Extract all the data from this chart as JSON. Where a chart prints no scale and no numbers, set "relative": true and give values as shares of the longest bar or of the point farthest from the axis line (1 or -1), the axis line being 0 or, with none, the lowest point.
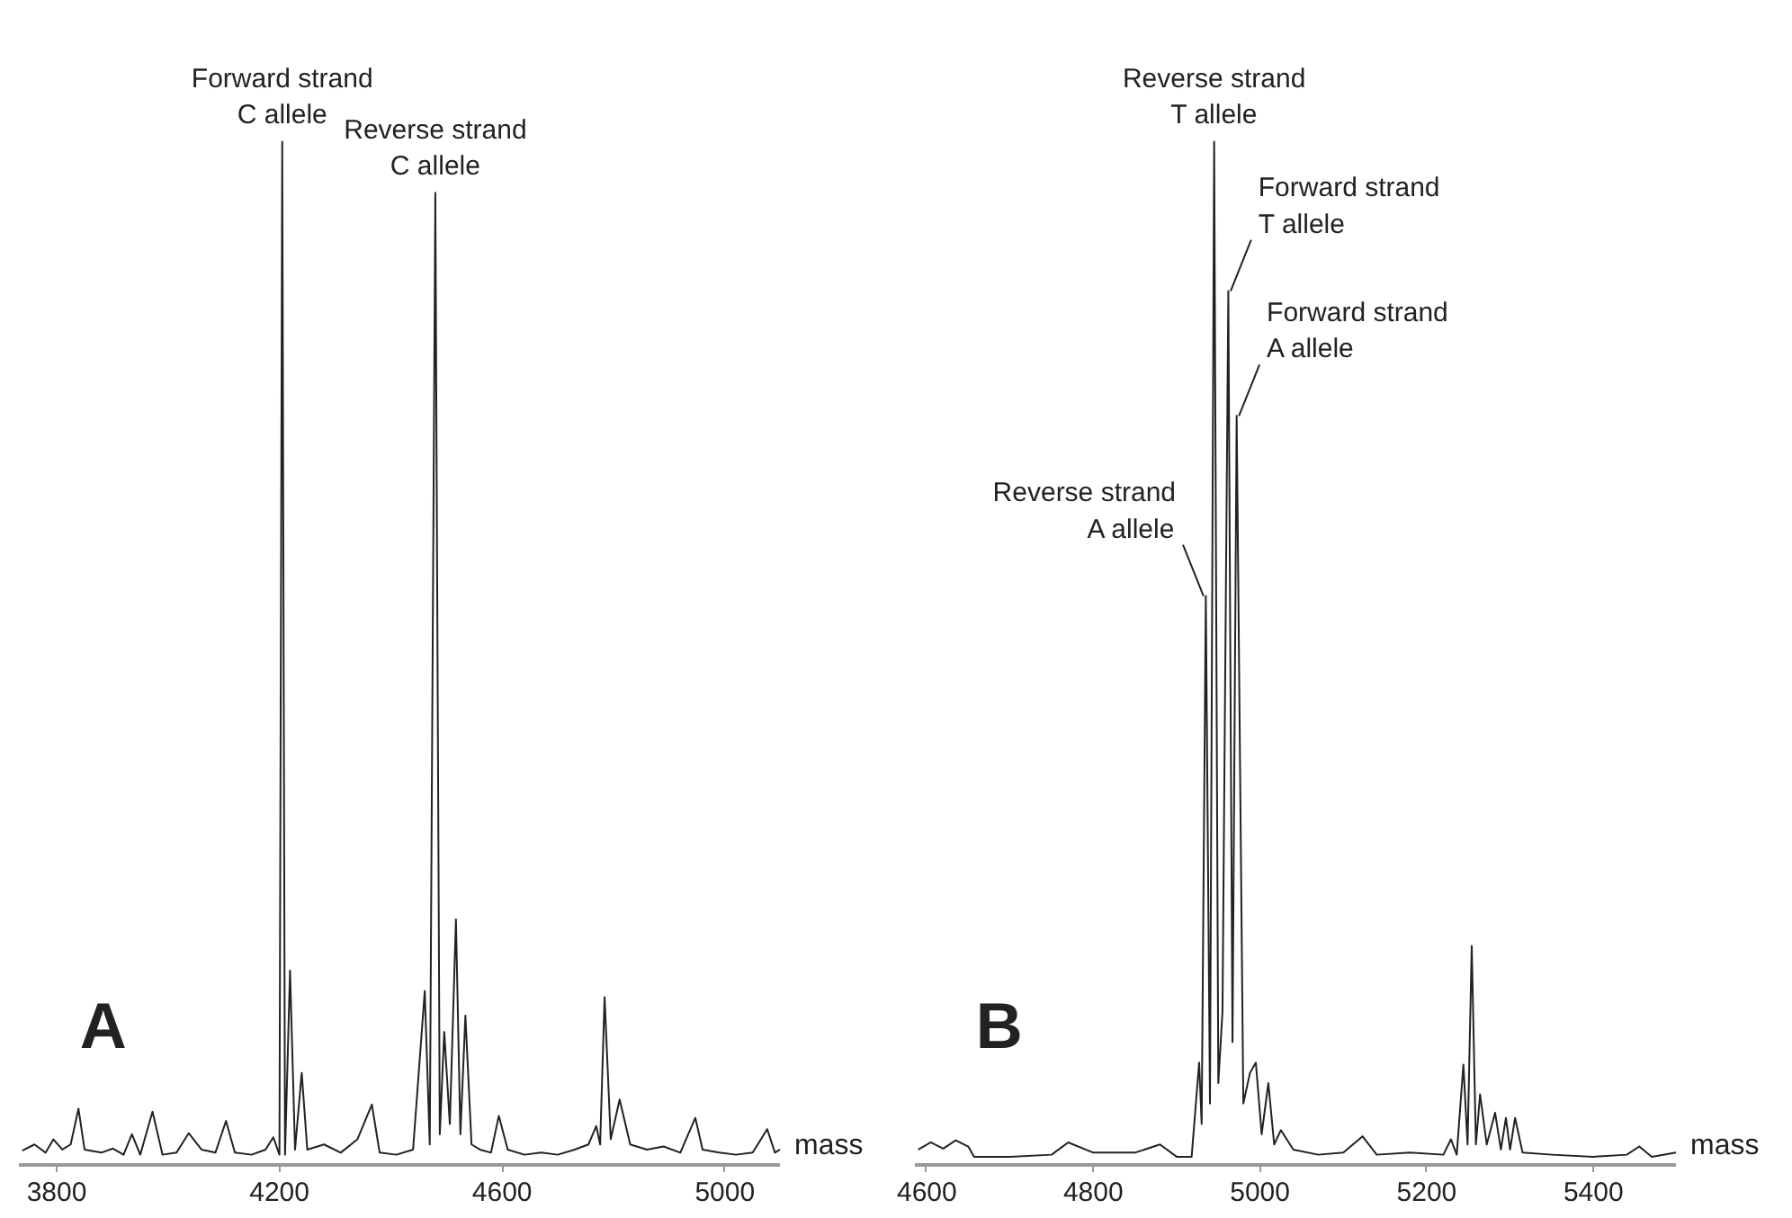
{
  "chart_data": [
    {
      "type": "line",
      "relative": true,
      "xlabel": "mass",
      "xlim": [
        3732,
        5099
      ],
      "xticks": [
        3800,
        4200,
        4600,
        5000
      ],
      "grid": false,
      "series": [
        {
          "color": "#222222",
          "x": [
            3738,
            3760,
            3780,
            3794,
            3810,
            3825,
            3839,
            3850,
            3880,
            3901,
            3920,
            3935,
            3950,
            3972,
            3990,
            4015,
            4037,
            4060,
            4085,
            4104,
            4120,
            4150,
            4175,
            4189,
            4200,
            4205,
            4210,
            4219,
            4228,
            4240,
            4250,
            4280,
            4310,
            4340,
            4366,
            4380,
            4410,
            4440,
            4461,
            4470,
            4480,
            4488,
            4496,
            4506,
            4517,
            4525,
            4534,
            4545,
            4560,
            4580,
            4594,
            4610,
            4640,
            4670,
            4700,
            4730,
            4755,
            4769,
            4776,
            4784,
            4795,
            4811,
            4830,
            4860,
            4890,
            4920,
            4947,
            4960,
            4990,
            5020,
            5050,
            5076,
            5090,
            5099
          ],
          "values": [
            0.014,
            0.02,
            0.012,
            0.025,
            0.015,
            0.02,
            0.055,
            0.015,
            0.012,
            0.016,
            0.01,
            0.03,
            0.01,
            0.052,
            0.01,
            0.012,
            0.031,
            0.015,
            0.012,
            0.043,
            0.012,
            0.01,
            0.015,
            0.027,
            0.01,
            1.0,
            0.01,
            0.19,
            0.015,
            0.09,
            0.015,
            0.02,
            0.012,
            0.025,
            0.059,
            0.012,
            0.01,
            0.015,
            0.17,
            0.02,
            0.95,
            0.03,
            0.13,
            0.04,
            0.24,
            0.03,
            0.146,
            0.02,
            0.015,
            0.012,
            0.048,
            0.015,
            0.01,
            0.012,
            0.01,
            0.015,
            0.02,
            0.038,
            0.02,
            0.164,
            0.025,
            0.064,
            0.02,
            0.015,
            0.018,
            0.012,
            0.046,
            0.015,
            0.012,
            0.01,
            0.012,
            0.035,
            0.012,
            0.015
          ]
        }
      ],
      "annotations": [
        "A",
        {
          "text": "Forward strand\nC allele",
          "x": 4205,
          "y": 1.0
        },
        {
          "text": "Reverse strand\nC allele",
          "x": 4480,
          "y": 0.95
        }
      ]
    },
    {
      "type": "line",
      "relative": true,
      "xlabel": "mass",
      "xlim": [
        4586,
        5499
      ],
      "xticks": [
        4600,
        4800,
        5000,
        5200,
        5400
      ],
      "grid": false,
      "series": [
        {
          "color": "#222222",
          "x": [
            4590,
            4605,
            4620,
            4635,
            4650,
            4657,
            4700,
            4750,
            4770,
            4800,
            4850,
            4880,
            4900,
            4918,
            4927,
            4930,
            4935,
            4940,
            4945,
            4950,
            4955,
            4962,
            4967,
            4972,
            4980,
            4988,
            4995,
            5002,
            5010,
            5017,
            5025,
            5040,
            5070,
            5100,
            5123,
            5140,
            5180,
            5220,
            5229,
            5236,
            5244,
            5249,
            5254,
            5259,
            5264,
            5272,
            5282,
            5289,
            5295,
            5300,
            5306,
            5315,
            5350,
            5400,
            5440,
            5455,
            5470,
            5499
          ],
          "values": [
            0.015,
            0.022,
            0.016,
            0.024,
            0.018,
            0.008,
            0.008,
            0.01,
            0.022,
            0.012,
            0.012,
            0.02,
            0.008,
            0.008,
            0.1,
            0.04,
            0.556,
            0.06,
            1.0,
            0.08,
            0.15,
            0.854,
            0.12,
            0.732,
            0.06,
            0.09,
            0.1,
            0.03,
            0.08,
            0.02,
            0.034,
            0.015,
            0.01,
            0.012,
            0.028,
            0.01,
            0.012,
            0.01,
            0.025,
            0.01,
            0.098,
            0.02,
            0.214,
            0.02,
            0.069,
            0.02,
            0.051,
            0.015,
            0.046,
            0.015,
            0.046,
            0.012,
            0.01,
            0.008,
            0.01,
            0.018,
            0.008,
            0.012
          ]
        }
      ],
      "annotations": [
        "B",
        {
          "text": "Reverse strand\nT allele",
          "x": 4945,
          "y": 1.0
        },
        {
          "text": "Forward strand\nT allele",
          "x": 4962,
          "y": 0.854
        },
        {
          "text": "Forward strand\nA allele",
          "x": 4972,
          "y": 0.732
        },
        {
          "text": "Reverse strand\nA allele",
          "x": 4935,
          "y": 0.556
        }
      ]
    }
  ]
}
